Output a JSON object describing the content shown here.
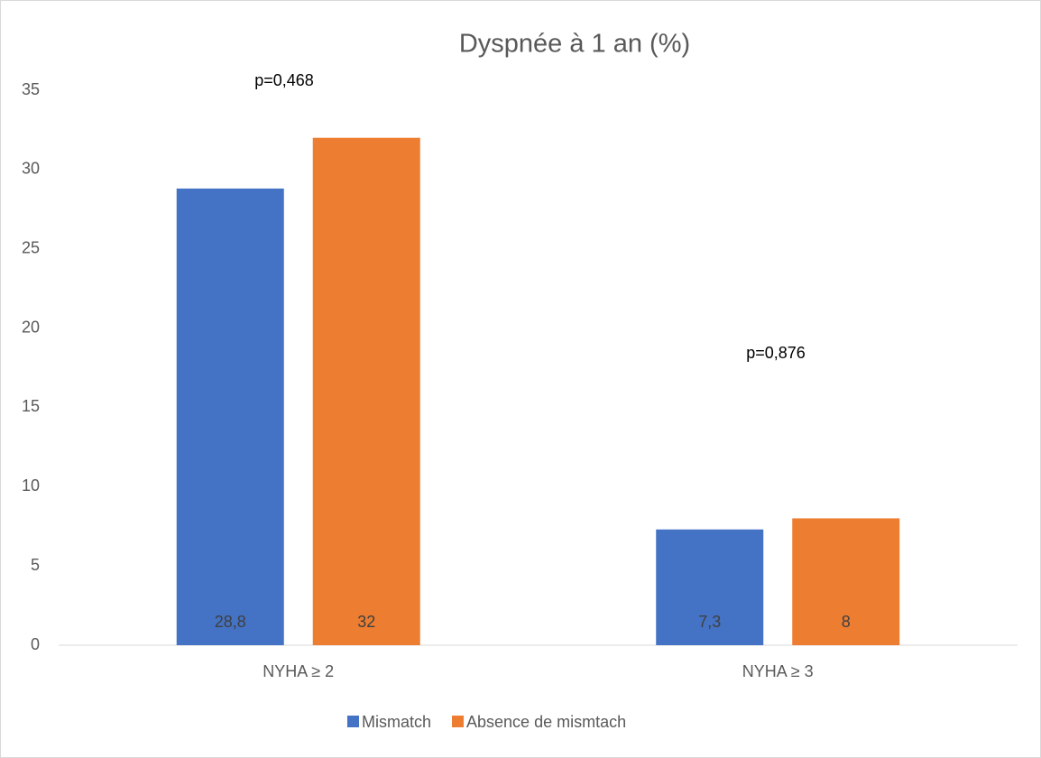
{
  "chart_data": {
    "type": "bar",
    "title": "Dyspnée à 1 an (%)",
    "categories": [
      "NYHA ≥ 2",
      "NYHA ≥ 3"
    ],
    "series": [
      {
        "name": "Mismatch",
        "color": "#4472c4",
        "values": [
          28.8,
          7.3
        ],
        "value_labels": [
          "28,8",
          "7,3"
        ]
      },
      {
        "name": "Absence de mismtach",
        "color": "#ed7d31",
        "values": [
          32,
          8
        ],
        "value_labels": [
          "32",
          "8"
        ]
      }
    ],
    "annotations": [
      "p=0,468",
      "p=0,876"
    ],
    "ylim": [
      0,
      35
    ],
    "yticks": [
      0,
      5,
      10,
      15,
      20,
      25,
      30,
      35
    ],
    "grid": false,
    "legend": "bottom"
  }
}
